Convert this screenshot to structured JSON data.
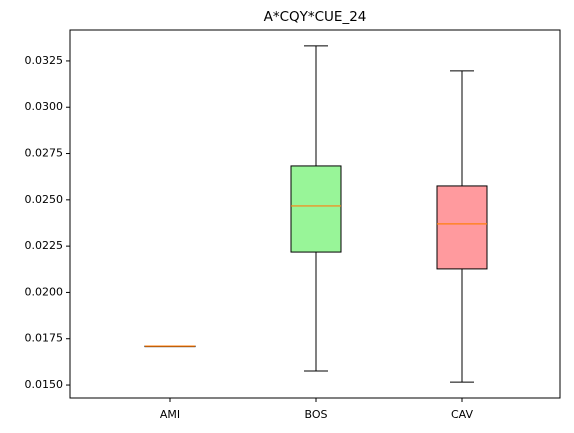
{
  "chart_data": {
    "type": "box",
    "title": "A*CQY*CUE_24",
    "categories": [
      "AMI",
      "BOS",
      "CAV"
    ],
    "boxes": [
      {
        "min": 0.0171,
        "q1": 0.0171,
        "median": 0.0171,
        "q3": 0.0171,
        "max": 0.0171,
        "color": "#add8e6"
      },
      {
        "min": 0.01576,
        "q1": 0.02218,
        "median": 0.02467,
        "q3": 0.02683,
        "max": 0.03331,
        "color": "#98f598"
      },
      {
        "min": 0.01516,
        "q1": 0.02127,
        "median": 0.0237,
        "q3": 0.02575,
        "max": 0.03196,
        "color": "#ff9a9e"
      }
    ],
    "median_color": "#ff7f0e",
    "ylim": [
      0.0143,
      0.03417
    ],
    "yticks": [
      {
        "value": 0.015,
        "label": "0.0150"
      },
      {
        "value": 0.0175,
        "label": "0.0175"
      },
      {
        "value": 0.02,
        "label": "0.0200"
      },
      {
        "value": 0.0225,
        "label": "0.0225"
      },
      {
        "value": 0.025,
        "label": "0.0250"
      },
      {
        "value": 0.0275,
        "label": "0.0275"
      },
      {
        "value": 0.03,
        "label": "0.0300"
      },
      {
        "value": 0.0325,
        "label": "0.0325"
      }
    ]
  }
}
